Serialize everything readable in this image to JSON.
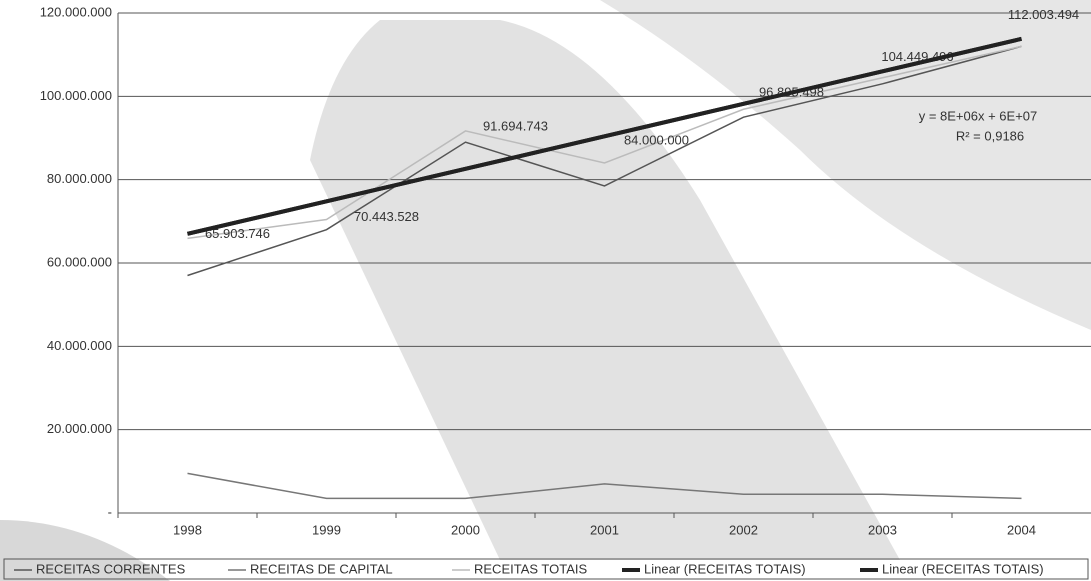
{
  "chart_data": {
    "type": "line",
    "categories": [
      "1998",
      "1999",
      "2000",
      "2001",
      "2002",
      "2003",
      "2004"
    ],
    "ylim": [
      0,
      120000000
    ],
    "yticks": [
      {
        "value": 0,
        "label": "-"
      },
      {
        "value": 20000000,
        "label": "20.000.000"
      },
      {
        "value": 40000000,
        "label": "40.000.000"
      },
      {
        "value": 60000000,
        "label": "60.000.000"
      },
      {
        "value": 80000000,
        "label": "80.000.000"
      },
      {
        "value": 100000000,
        "label": "100.000.000"
      },
      {
        "value": 120000000,
        "label": "120.000.000"
      }
    ],
    "grid": true,
    "legend": "bottom",
    "series": [
      {
        "name": "RECEITAS CORRENTES",
        "color": "#555555",
        "values": [
          57000000,
          68000000,
          89000000,
          78500000,
          95000000,
          103000000,
          112000000
        ]
      },
      {
        "name": "RECEITAS DE CAPITAL",
        "color": "#777777",
        "values": [
          9500000,
          3500000,
          3500000,
          7000000,
          4500000,
          4500000,
          3500000
        ]
      },
      {
        "name": "RECEITAS TOTAIS",
        "color": "#bbbbbb",
        "values": [
          65903746,
          70443528,
          91694743,
          84000000,
          96895498,
          104449496,
          112003494
        ],
        "value_labels": [
          "65.903.746",
          "70.443.528",
          "91.694.743",
          "84.000.000",
          "96.895.498",
          "104.449.496",
          "112.003.494"
        ]
      },
      {
        "name": "Linear (RECEITAS TOTAIS)",
        "color": "#222222",
        "values": [
          67000000,
          74800000,
          82600000,
          90400000,
          98200000,
          106000000,
          113800000
        ]
      },
      {
        "name": "Linear (RECEITAS TOTAIS)",
        "color": "#222222",
        "values": [
          67000000,
          74800000,
          82600000,
          90400000,
          98200000,
          106000000,
          113800000
        ]
      }
    ],
    "annotations": [
      "y = 8E+06x + 6E+07",
      "R² = 0,9186"
    ]
  }
}
